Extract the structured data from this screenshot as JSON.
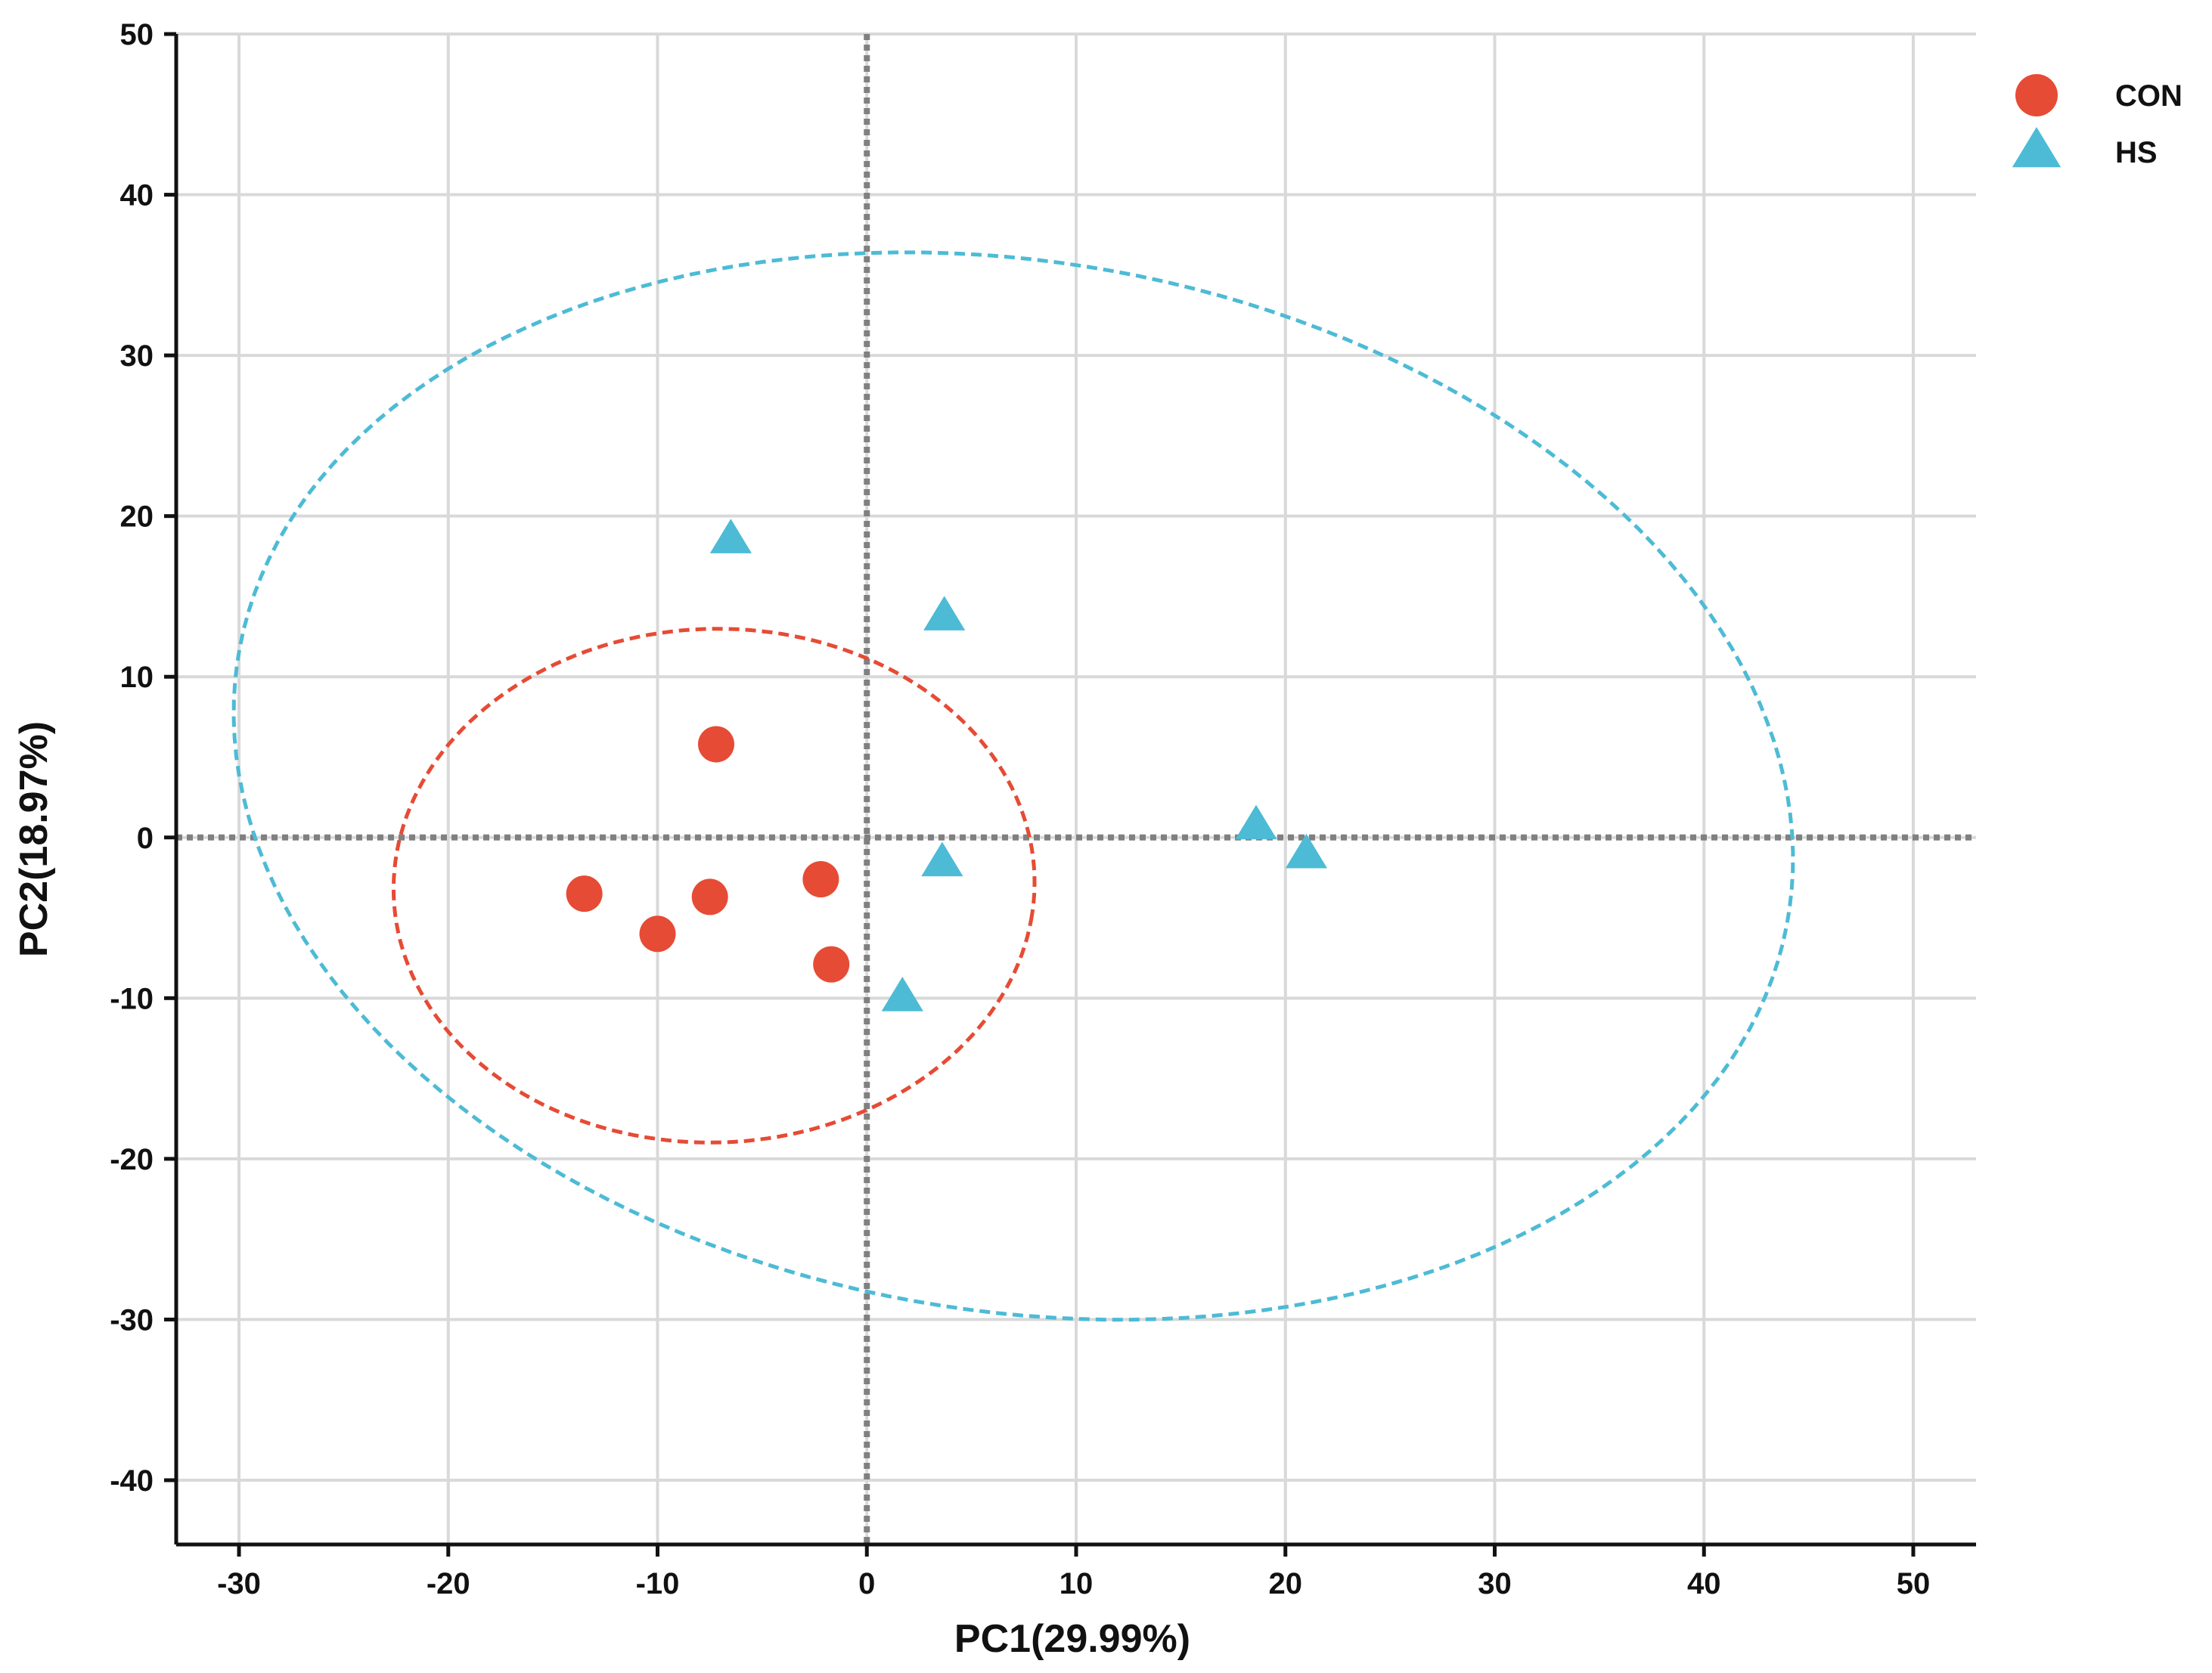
{
  "chart_data": {
    "type": "scatter",
    "title": "",
    "xlabel": "PC1(29.99%)",
    "ylabel": "PC2(18.97%)",
    "xlim": [
      -33,
      53
    ],
    "ylim": [
      -44,
      50
    ],
    "xticks": [
      -30,
      -20,
      -10,
      0,
      10,
      20,
      30,
      40,
      50
    ],
    "yticks": [
      -40,
      -30,
      -20,
      -10,
      0,
      10,
      20,
      30,
      40,
      50
    ],
    "xtick_labels": [
      "-30",
      "-20",
      "-10",
      "0",
      "10",
      "20",
      "30",
      "40",
      "50"
    ],
    "ytick_labels": [
      "-40",
      "-30",
      "-20",
      "-10",
      "0",
      "10",
      "20",
      "30",
      "40",
      "50"
    ],
    "grid": true,
    "reference_lines": {
      "x": 0,
      "y": 0,
      "style": "dotted",
      "color": "#808080"
    },
    "legend_position": "top-right (outside plot)",
    "series": [
      {
        "name": "CON",
        "marker": "circle",
        "color": "#E64B35",
        "points": [
          {
            "x": -7.2,
            "y": 5.8
          },
          {
            "x": -13.5,
            "y": -3.5
          },
          {
            "x": -10.0,
            "y": -6.0
          },
          {
            "x": -7.5,
            "y": -3.7
          },
          {
            "x": -2.2,
            "y": -2.6
          },
          {
            "x": -1.7,
            "y": -7.9
          }
        ],
        "ellipse": {
          "cx": -7.3,
          "cy": -3.0,
          "rx": 15.3,
          "ry": 16.0,
          "angle_deg": -8
        }
      },
      {
        "name": "HS",
        "marker": "triangle",
        "color": "#4DBBD5",
        "points": [
          {
            "x": -6.5,
            "y": 18.5
          },
          {
            "x": 3.7,
            "y": 13.7
          },
          {
            "x": 3.6,
            "y": -1.6
          },
          {
            "x": 1.7,
            "y": -10.0
          },
          {
            "x": 18.6,
            "y": 0.7
          },
          {
            "x": 21.0,
            "y": -1.1
          }
        ],
        "ellipse": {
          "cx": 7.0,
          "cy": 3.2,
          "rx": 38.3,
          "ry": 32.0,
          "angle_deg": -25
        }
      }
    ]
  }
}
